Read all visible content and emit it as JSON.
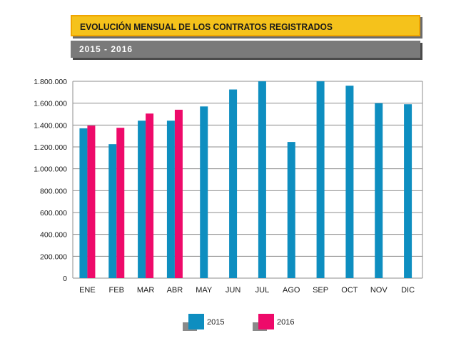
{
  "header": {
    "title": "EVOLUCIÓN MENSUAL DE LOS CONTRATOS REGISTRADOS",
    "subtitle": "2015 - 2016"
  },
  "colors": {
    "series_2015": "#0e8ec0",
    "series_2016": "#ee0a6a",
    "grid": "#8c8c8c",
    "axis_text": "#1a1a1a"
  },
  "chart_data": {
    "type": "bar",
    "title": "EVOLUCIÓN MENSUAL DE LOS CONTRATOS REGISTRADOS",
    "subtitle": "2015 - 2016",
    "xlabel": "",
    "ylabel": "",
    "ylim": [
      0,
      1800000
    ],
    "grid": true,
    "legend_position": "bottom-center",
    "categories": [
      "ENE",
      "FEB",
      "MAR",
      "ABR",
      "MAY",
      "JUN",
      "JUL",
      "AGO",
      "SEP",
      "OCT",
      "NOV",
      "DIC"
    ],
    "y_ticks": [
      "0",
      "200.000",
      "400.000",
      "600.000",
      "800.000",
      "1.000.000",
      "1.200.000",
      "1.400.000",
      "1.600.000",
      "1.800.000"
    ],
    "series": [
      {
        "name": "2015",
        "values": [
          1370000,
          1225000,
          1440000,
          1440000,
          1570000,
          1725000,
          1800000,
          1245000,
          1800000,
          1760000,
          1600000,
          1590000
        ]
      },
      {
        "name": "2016",
        "values": [
          1395000,
          1375000,
          1505000,
          1540000,
          null,
          null,
          null,
          null,
          null,
          null,
          null,
          null
        ]
      }
    ]
  }
}
